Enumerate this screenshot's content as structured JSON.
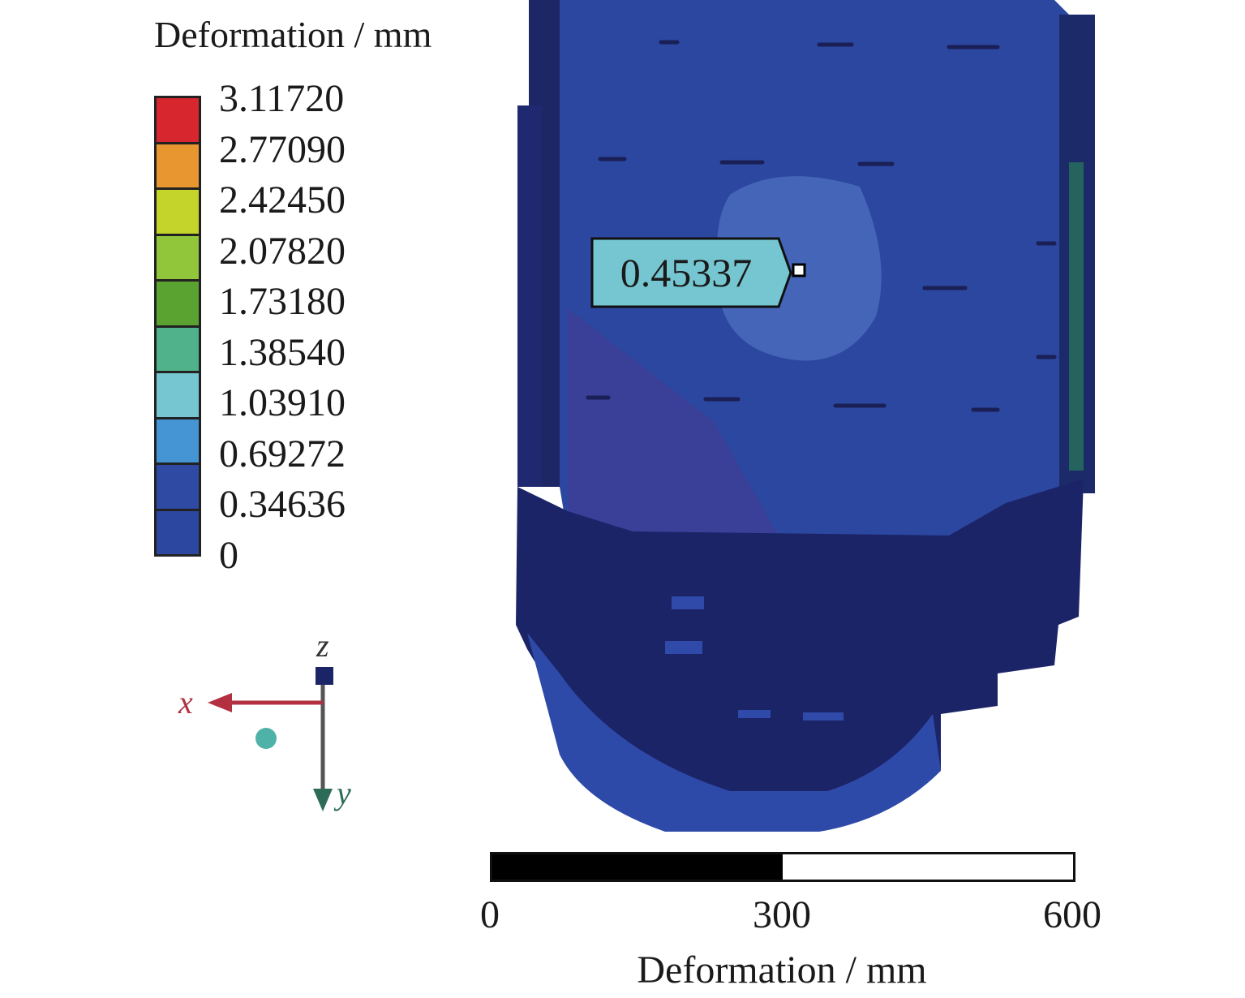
{
  "legend": {
    "title": "Deformation / mm",
    "levels": [
      {
        "value": "3.11720",
        "color": "#d8262e"
      },
      {
        "value": "2.77090",
        "color": "#e8962f"
      },
      {
        "value": "2.42450",
        "color": "#c4d42a"
      },
      {
        "value": "2.07820",
        "color": "#92c63a"
      },
      {
        "value": "1.73180",
        "color": "#5aa330"
      },
      {
        "value": "1.38540",
        "color": "#4fb28a"
      },
      {
        "value": "1.03910",
        "color": "#76c6d2"
      },
      {
        "value": "0.69272",
        "color": "#4594d4"
      },
      {
        "value": "0.34636",
        "color": "#2f4aa3"
      },
      {
        "value": "0",
        "color": null
      }
    ]
  },
  "probe": {
    "value": "0.45337"
  },
  "axes": {
    "x": "x",
    "y": "y",
    "z": "z"
  },
  "scale_bar": {
    "ticks": [
      "0",
      "300",
      "600"
    ],
    "caption": "Deformation / mm"
  }
}
